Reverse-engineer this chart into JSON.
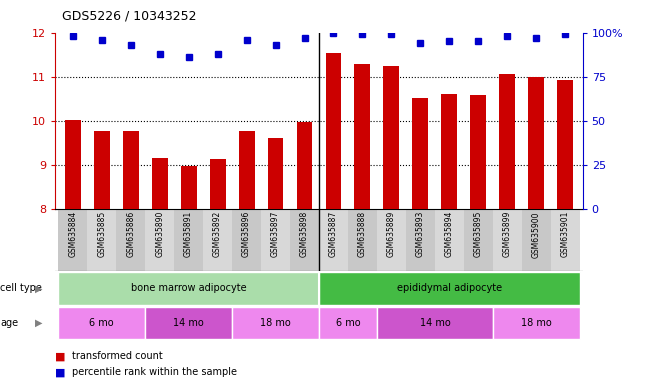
{
  "title": "GDS5226 / 10343252",
  "samples": [
    "GSM635884",
    "GSM635885",
    "GSM635886",
    "GSM635890",
    "GSM635891",
    "GSM635892",
    "GSM635896",
    "GSM635897",
    "GSM635898",
    "GSM635887",
    "GSM635888",
    "GSM635889",
    "GSM635893",
    "GSM635894",
    "GSM635895",
    "GSM635899",
    "GSM635900",
    "GSM635901"
  ],
  "bar_values": [
    10.02,
    9.78,
    9.77,
    9.15,
    8.98,
    9.14,
    9.77,
    9.62,
    9.97,
    11.55,
    11.28,
    11.25,
    10.52,
    10.6,
    10.59,
    11.06,
    11.0,
    10.93
  ],
  "percentile_values": [
    98,
    96,
    93,
    88,
    86,
    88,
    96,
    93,
    97,
    100,
    99,
    99,
    94,
    95,
    95,
    98,
    97,
    99
  ],
  "ymin": 8,
  "ymax": 12,
  "yticks": [
    8,
    9,
    10,
    11,
    12
  ],
  "percentile_yticks": [
    0,
    25,
    50,
    75,
    100
  ],
  "bar_color": "#cc0000",
  "percentile_color": "#0000cc",
  "cell_type_groups": [
    {
      "label": "bone marrow adipocyte",
      "start": 0,
      "end": 9,
      "color": "#aaddaa"
    },
    {
      "label": "epididymal adipocyte",
      "start": 9,
      "end": 18,
      "color": "#44bb44"
    }
  ],
  "age_groups": [
    {
      "label": "6 mo",
      "start": 0,
      "end": 3,
      "color": "#ee88ee"
    },
    {
      "label": "14 mo",
      "start": 3,
      "end": 6,
      "color": "#cc55cc"
    },
    {
      "label": "18 mo",
      "start": 6,
      "end": 9,
      "color": "#ee88ee"
    },
    {
      "label": "6 mo",
      "start": 9,
      "end": 11,
      "color": "#ee88ee"
    },
    {
      "label": "14 mo",
      "start": 11,
      "end": 15,
      "color": "#cc55cc"
    },
    {
      "label": "18 mo",
      "start": 15,
      "end": 18,
      "color": "#ee88ee"
    }
  ],
  "title_fontsize": 9,
  "background_color": "#ffffff",
  "tick_label_color_left": "#cc0000",
  "tick_label_color_right": "#0000cc"
}
